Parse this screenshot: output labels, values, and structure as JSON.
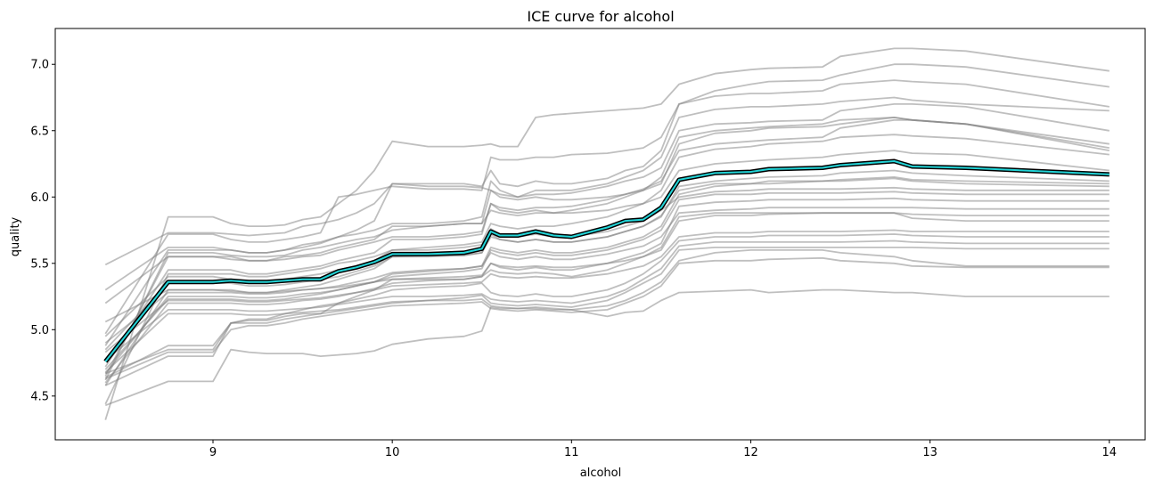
{
  "chart_data": {
    "type": "line",
    "title": "ICE curve for alcohol",
    "xlabel": "alcohol",
    "ylabel": "quality",
    "xlim": [
      8.12,
      14.2
    ],
    "ylim": [
      4.17,
      7.27
    ],
    "xticks": [
      "9",
      "10",
      "11",
      "12",
      "13",
      "14"
    ],
    "yticks": [
      "4.5",
      "5.0",
      "5.5",
      "6.0",
      "6.5",
      "7.0"
    ],
    "grid": false,
    "legend": "none",
    "colors": {
      "ice": "#808080",
      "mean_fill": "#22d3d6",
      "mean_outline": "#000000"
    },
    "x": [
      8.4,
      8.75,
      9.0,
      9.1,
      9.2,
      9.3,
      9.4,
      9.5,
      9.6,
      9.7,
      9.8,
      9.9,
      10.0,
      10.2,
      10.4,
      10.5,
      10.55,
      10.6,
      10.7,
      10.8,
      10.9,
      11.0,
      11.2,
      11.3,
      11.4,
      11.5,
      11.6,
      11.8,
      12.0,
      12.1,
      12.4,
      12.5,
      12.8,
      12.9,
      13.2,
      14.0
    ],
    "mean_curve": [
      4.76,
      5.36,
      5.36,
      5.37,
      5.36,
      5.36,
      5.37,
      5.38,
      5.38,
      5.44,
      5.47,
      5.51,
      5.57,
      5.57,
      5.58,
      5.61,
      5.74,
      5.71,
      5.71,
      5.74,
      5.71,
      5.7,
      5.77,
      5.82,
      5.83,
      5.92,
      6.13,
      6.18,
      6.19,
      6.21,
      6.22,
      6.24,
      6.27,
      6.23,
      6.22,
      6.17
    ],
    "ice_curves": [
      [
        5.49,
        5.73,
        5.73,
        5.72,
        5.71,
        5.72,
        5.73,
        5.78,
        5.8,
        5.83,
        5.88,
        5.95,
        6.1,
        6.1,
        6.1,
        6.08,
        6.2,
        6.1,
        6.08,
        6.12,
        6.1,
        6.1,
        6.14,
        6.2,
        6.23,
        6.35,
        6.7,
        6.8,
        6.85,
        6.87,
        6.88,
        6.92,
        7.0,
        7.0,
        6.98,
        6.83
      ],
      [
        4.32,
        5.85,
        5.85,
        5.8,
        5.78,
        5.78,
        5.79,
        5.83,
        5.85,
        5.95,
        6.05,
        6.2,
        6.42,
        6.38,
        6.38,
        6.39,
        6.4,
        6.38,
        6.38,
        6.6,
        6.62,
        6.63,
        6.65,
        6.66,
        6.67,
        6.7,
        6.85,
        6.93,
        6.96,
        6.97,
        6.98,
        7.06,
        7.12,
        7.12,
        7.1,
        6.95
      ],
      [
        4.97,
        5.72,
        5.72,
        5.68,
        5.66,
        5.66,
        5.68,
        5.7,
        5.73,
        6.0,
        6.02,
        6.05,
        6.08,
        6.06,
        6.06,
        6.05,
        6.3,
        6.28,
        6.28,
        6.3,
        6.3,
        6.32,
        6.33,
        6.35,
        6.37,
        6.45,
        6.7,
        6.76,
        6.78,
        6.78,
        6.8,
        6.85,
        6.88,
        6.87,
        6.85,
        6.68
      ],
      [
        4.88,
        5.6,
        5.6,
        5.6,
        5.58,
        5.58,
        5.6,
        5.62,
        5.65,
        5.7,
        5.72,
        5.75,
        5.8,
        5.8,
        5.82,
        5.85,
        6.12,
        6.05,
        6.0,
        6.05,
        6.05,
        6.05,
        6.1,
        6.15,
        6.2,
        6.3,
        6.6,
        6.66,
        6.68,
        6.68,
        6.7,
        6.72,
        6.75,
        6.73,
        6.7,
        6.65
      ],
      [
        4.65,
        5.55,
        5.55,
        5.55,
        5.52,
        5.52,
        5.55,
        5.56,
        5.58,
        5.62,
        5.65,
        5.68,
        5.78,
        5.78,
        5.8,
        5.8,
        6.05,
        6.02,
        6.0,
        6.02,
        6.02,
        6.03,
        6.08,
        6.12,
        6.15,
        6.22,
        6.5,
        6.55,
        6.56,
        6.57,
        6.58,
        6.65,
        6.7,
        6.7,
        6.68,
        6.5
      ],
      [
        4.72,
        5.45,
        5.45,
        5.45,
        5.42,
        5.42,
        5.44,
        5.46,
        5.48,
        5.52,
        5.55,
        5.58,
        5.68,
        5.68,
        5.7,
        5.72,
        5.95,
        5.92,
        5.9,
        5.92,
        5.92,
        5.93,
        5.98,
        6.02,
        6.06,
        6.12,
        6.35,
        6.4,
        6.42,
        6.43,
        6.45,
        6.52,
        6.58,
        6.58,
        6.55,
        6.35
      ],
      [
        5.3,
        5.62,
        5.62,
        5.6,
        5.58,
        5.58,
        5.6,
        5.64,
        5.66,
        5.7,
        5.75,
        5.82,
        6.1,
        6.08,
        6.08,
        6.07,
        6.05,
        6.0,
        5.98,
        6.0,
        5.98,
        5.98,
        6.0,
        6.02,
        6.05,
        6.1,
        6.4,
        6.48,
        6.5,
        6.52,
        6.53,
        6.55,
        6.6,
        6.58,
        6.55,
        6.4
      ],
      [
        4.62,
        5.58,
        5.58,
        5.56,
        5.55,
        5.55,
        5.56,
        5.6,
        5.62,
        5.65,
        5.68,
        5.7,
        5.75,
        5.78,
        5.8,
        5.8,
        5.9,
        5.88,
        5.86,
        5.88,
        5.88,
        5.9,
        5.95,
        6.0,
        6.05,
        6.15,
        6.45,
        6.5,
        6.52,
        6.53,
        6.55,
        6.58,
        6.6,
        6.58,
        6.55,
        6.37
      ],
      [
        4.44,
        5.42,
        5.42,
        5.42,
        5.4,
        5.4,
        5.42,
        5.44,
        5.46,
        5.5,
        5.52,
        5.55,
        5.6,
        5.62,
        5.64,
        5.66,
        5.8,
        5.78,
        5.76,
        5.78,
        5.78,
        5.8,
        5.85,
        5.9,
        5.95,
        6.05,
        6.3,
        6.36,
        6.38,
        6.4,
        6.42,
        6.45,
        6.47,
        6.46,
        6.44,
        6.32
      ],
      [
        5.2,
        5.55,
        5.55,
        5.53,
        5.52,
        5.52,
        5.53,
        5.55,
        5.56,
        5.6,
        5.63,
        5.66,
        5.7,
        5.7,
        5.72,
        5.74,
        5.95,
        5.9,
        5.88,
        5.9,
        5.88,
        5.88,
        5.9,
        5.93,
        5.95,
        6.0,
        6.2,
        6.25,
        6.27,
        6.28,
        6.3,
        6.32,
        6.35,
        6.33,
        6.32,
        6.2
      ],
      [
        4.58,
        5.3,
        5.3,
        5.3,
        5.28,
        5.28,
        5.3,
        5.32,
        5.34,
        5.38,
        5.42,
        5.46,
        5.55,
        5.55,
        5.56,
        5.58,
        5.7,
        5.68,
        5.66,
        5.68,
        5.66,
        5.66,
        5.7,
        5.74,
        5.78,
        5.85,
        6.08,
        6.12,
        6.14,
        6.15,
        6.16,
        6.18,
        6.2,
        6.18,
        6.16,
        6.12
      ],
      [
        4.7,
        5.23,
        5.23,
        5.23,
        5.22,
        5.22,
        5.23,
        5.25,
        5.27,
        5.3,
        5.33,
        5.36,
        5.42,
        5.44,
        5.46,
        5.48,
        5.62,
        5.6,
        5.58,
        5.6,
        5.58,
        5.58,
        5.62,
        5.66,
        5.7,
        5.78,
        6.02,
        6.08,
        6.1,
        6.1,
        6.12,
        6.13,
        6.15,
        6.13,
        6.12,
        6.1
      ],
      [
        4.85,
        5.35,
        5.35,
        5.35,
        5.33,
        5.33,
        5.34,
        5.36,
        5.38,
        5.4,
        5.44,
        5.48,
        5.55,
        5.56,
        5.56,
        5.58,
        5.72,
        5.68,
        5.66,
        5.68,
        5.66,
        5.66,
        5.7,
        5.74,
        5.78,
        5.86,
        6.05,
        6.1,
        6.1,
        6.12,
        6.12,
        6.12,
        6.14,
        6.12,
        6.1,
        6.08
      ],
      [
        4.95,
        5.4,
        5.4,
        5.38,
        5.36,
        5.36,
        5.38,
        5.4,
        5.42,
        5.45,
        5.48,
        5.52,
        5.6,
        5.6,
        5.62,
        5.64,
        5.76,
        5.72,
        5.7,
        5.72,
        5.7,
        5.7,
        5.74,
        5.78,
        5.82,
        5.9,
        6.0,
        6.04,
        6.05,
        6.06,
        6.06,
        6.06,
        6.07,
        6.06,
        6.05,
        6.05
      ],
      [
        4.67,
        5.25,
        5.25,
        5.25,
        5.24,
        5.24,
        5.25,
        5.27,
        5.28,
        5.3,
        5.33,
        5.36,
        5.4,
        5.42,
        5.44,
        5.46,
        5.6,
        5.58,
        5.56,
        5.58,
        5.56,
        5.56,
        5.6,
        5.64,
        5.68,
        5.75,
        5.98,
        6.02,
        6.02,
        6.03,
        6.03,
        6.03,
        6.04,
        6.03,
        6.02,
        6.02
      ],
      [
        4.6,
        5.2,
        5.2,
        5.2,
        5.19,
        5.19,
        5.2,
        5.22,
        5.23,
        5.25,
        5.28,
        5.31,
        5.35,
        5.37,
        5.38,
        5.4,
        5.5,
        5.47,
        5.45,
        5.47,
        5.45,
        5.45,
        5.5,
        5.54,
        5.58,
        5.65,
        5.93,
        5.96,
        5.97,
        5.98,
        5.98,
        5.98,
        5.99,
        5.98,
        5.97,
        5.97
      ],
      [
        4.9,
        5.28,
        5.28,
        5.28,
        5.27,
        5.27,
        5.28,
        5.3,
        5.31,
        5.33,
        5.36,
        5.39,
        5.43,
        5.45,
        5.46,
        5.48,
        5.58,
        5.55,
        5.53,
        5.55,
        5.53,
        5.53,
        5.57,
        5.6,
        5.63,
        5.7,
        5.88,
        5.9,
        5.91,
        5.92,
        5.92,
        5.92,
        5.92,
        5.92,
        5.91,
        5.91
      ],
      [
        5.06,
        5.3,
        5.3,
        5.29,
        5.28,
        5.28,
        5.29,
        5.3,
        5.31,
        5.32,
        5.34,
        5.36,
        5.38,
        5.39,
        5.4,
        5.41,
        5.5,
        5.48,
        5.47,
        5.48,
        5.47,
        5.47,
        5.5,
        5.52,
        5.55,
        5.6,
        5.82,
        5.86,
        5.86,
        5.87,
        5.88,
        5.88,
        5.88,
        5.84,
        5.82,
        5.82
      ],
      [
        4.64,
        4.88,
        4.88,
        5.05,
        5.07,
        5.07,
        5.1,
        5.12,
        5.12,
        5.2,
        5.25,
        5.3,
        5.38,
        5.38,
        5.38,
        5.4,
        5.45,
        5.43,
        5.42,
        5.43,
        5.42,
        5.4,
        5.45,
        5.5,
        5.55,
        5.62,
        5.85,
        5.88,
        5.88,
        5.88,
        5.88,
        5.88,
        5.88,
        5.87,
        5.86,
        5.86
      ],
      [
        4.83,
        5.22,
        5.22,
        5.22,
        5.21,
        5.21,
        5.22,
        5.23,
        5.24,
        5.26,
        5.28,
        5.3,
        5.33,
        5.34,
        5.35,
        5.36,
        5.42,
        5.4,
        5.39,
        5.4,
        5.39,
        5.39,
        5.42,
        5.45,
        5.48,
        5.55,
        5.7,
        5.73,
        5.73,
        5.74,
        5.74,
        5.74,
        5.75,
        5.74,
        5.74,
        5.74
      ],
      [
        4.67,
        4.85,
        4.85,
        5.05,
        5.08,
        5.08,
        5.12,
        5.15,
        5.18,
        5.2,
        5.23,
        5.26,
        5.3,
        5.32,
        5.33,
        5.35,
        5.28,
        5.26,
        5.25,
        5.27,
        5.25,
        5.25,
        5.3,
        5.35,
        5.42,
        5.52,
        5.67,
        5.7,
        5.7,
        5.71,
        5.71,
        5.71,
        5.72,
        5.71,
        5.7,
        5.7
      ],
      [
        4.77,
        5.15,
        5.15,
        5.15,
        5.14,
        5.14,
        5.15,
        5.16,
        5.17,
        5.19,
        5.21,
        5.23,
        5.25,
        5.25,
        5.26,
        5.27,
        5.23,
        5.22,
        5.21,
        5.22,
        5.21,
        5.2,
        5.25,
        5.3,
        5.38,
        5.46,
        5.63,
        5.66,
        5.66,
        5.66,
        5.66,
        5.66,
        5.67,
        5.66,
        5.65,
        5.65
      ],
      [
        4.58,
        4.8,
        4.8,
        5.05,
        5.05,
        5.05,
        5.08,
        5.1,
        5.12,
        5.14,
        5.16,
        5.18,
        5.2,
        5.22,
        5.24,
        5.26,
        5.2,
        5.19,
        5.18,
        5.19,
        5.18,
        5.17,
        5.22,
        5.28,
        5.35,
        5.42,
        5.6,
        5.62,
        5.62,
        5.62,
        5.62,
        5.62,
        5.62,
        5.62,
        5.61,
        5.61
      ],
      [
        4.68,
        5.12,
        5.12,
        5.12,
        5.11,
        5.11,
        5.12,
        5.13,
        5.14,
        5.15,
        5.17,
        5.19,
        5.21,
        5.22,
        5.22,
        5.23,
        5.18,
        5.17,
        5.16,
        5.17,
        5.16,
        5.15,
        5.18,
        5.22,
        5.28,
        5.36,
        5.52,
        5.58,
        5.6,
        5.6,
        5.6,
        5.58,
        5.55,
        5.52,
        5.48,
        5.48
      ],
      [
        4.63,
        4.83,
        4.83,
        5.0,
        5.03,
        5.03,
        5.05,
        5.08,
        5.1,
        5.12,
        5.14,
        5.16,
        5.18,
        5.19,
        5.2,
        5.21,
        5.16,
        5.15,
        5.14,
        5.15,
        5.14,
        5.13,
        5.15,
        5.2,
        5.25,
        5.33,
        5.5,
        5.52,
        5.52,
        5.53,
        5.54,
        5.52,
        5.5,
        5.48,
        5.47,
        5.47
      ],
      [
        4.43,
        4.61,
        4.61,
        4.85,
        4.83,
        4.82,
        4.82,
        4.82,
        4.8,
        4.81,
        4.82,
        4.84,
        4.89,
        4.93,
        4.95,
        4.99,
        5.17,
        5.16,
        5.16,
        5.16,
        5.15,
        5.15,
        5.1,
        5.13,
        5.14,
        5.22,
        5.28,
        5.29,
        5.3,
        5.28,
        5.3,
        5.3,
        5.28,
        5.28,
        5.25,
        5.25
      ]
    ]
  }
}
